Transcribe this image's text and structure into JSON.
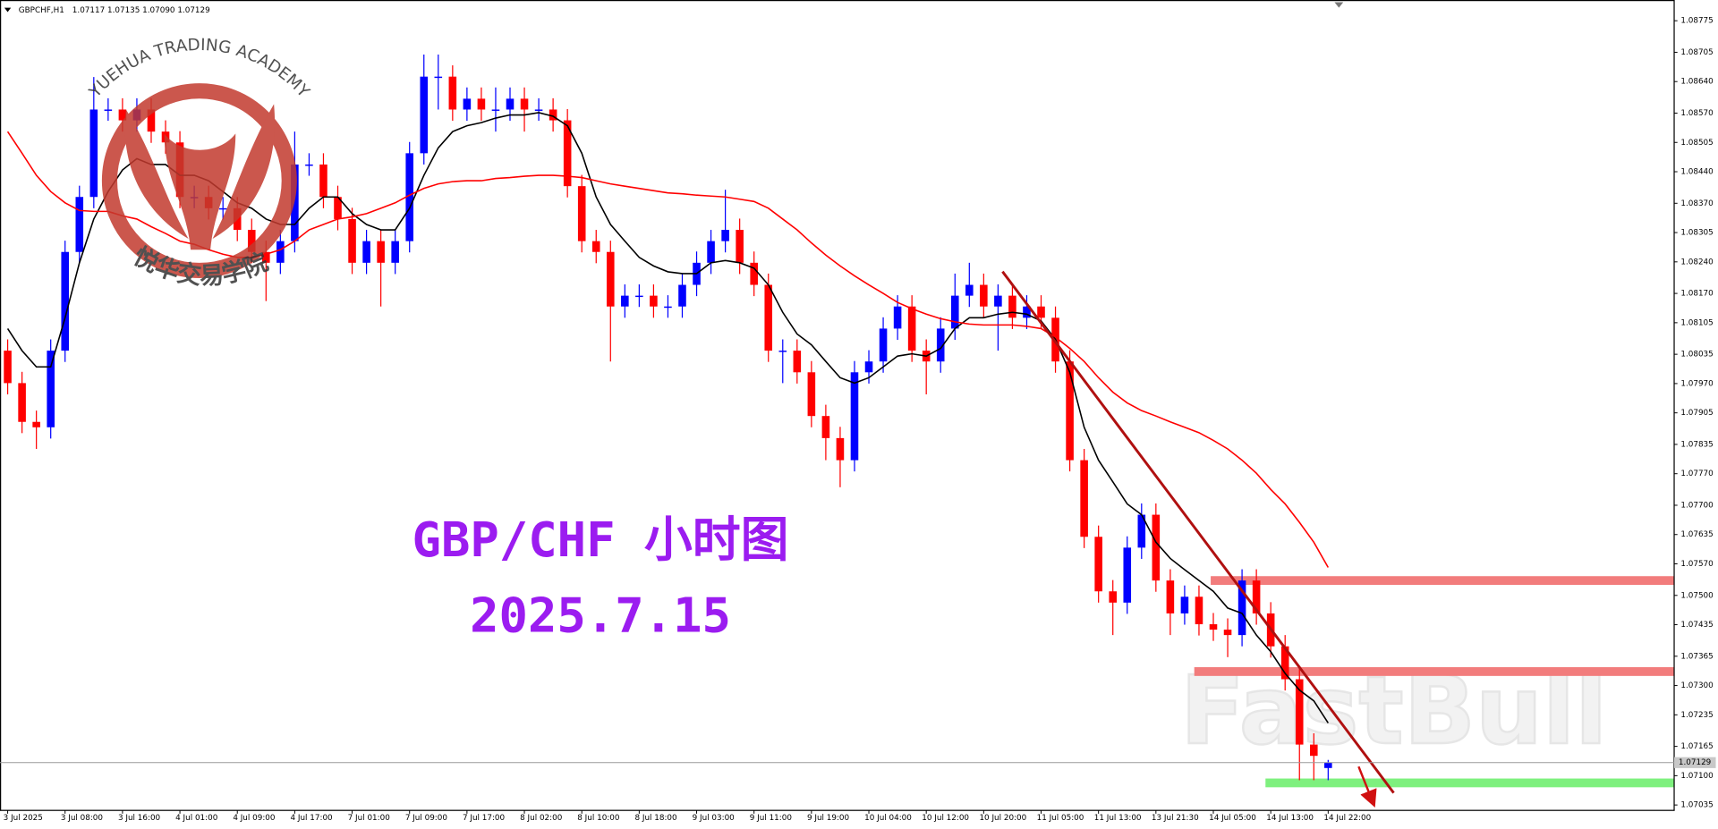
{
  "chart_data": {
    "type": "candlestick",
    "title": "GBPCHF,H1",
    "quote": "1.07117 1.07135 1.07090 1.07129",
    "annotations": [
      "GBP/CHF 小时图",
      "2025.7.15"
    ],
    "logo": {
      "top": "YUEHUA TRADING ACADEMY",
      "bottom": "悦华交易学院"
    },
    "watermark": "FastBull",
    "up_color": "#0000ff",
    "down_color": "#ff0000",
    "ylim": [
      1.07023,
      1.08821
    ],
    "yticks": [
      1.08775,
      1.08705,
      {
        "value": 1.0864,
        "label": "1.08640"
      },
      {
        "value": 1.0857,
        "label": "1.08570"
      },
      1.08505,
      {
        "value": 1.0844,
        "label": "1.08440"
      },
      {
        "value": 1.0837,
        "label": "1.08370"
      },
      1.08305,
      {
        "value": 1.0824,
        "label": "1.08240"
      },
      {
        "value": 1.0817,
        "label": "1.08170"
      },
      1.08105,
      1.08035,
      {
        "value": 1.0797,
        "label": "1.07970"
      },
      1.07905,
      1.07835,
      {
        "value": 1.0777,
        "label": "1.07770"
      },
      {
        "value": 1.077,
        "label": "1.07700"
      },
      1.07635,
      {
        "value": 1.0757,
        "label": "1.07570"
      },
      {
        "value": 1.075,
        "label": "1.07500"
      },
      1.07435,
      1.07365,
      {
        "value": 1.073,
        "label": "1.07300"
      },
      1.07235,
      1.07165,
      {
        "value": 1.071,
        "label": "1.07100"
      },
      1.07035
    ],
    "categories": [
      "3 Jul 2025",
      null,
      null,
      null,
      "3 Jul 08:00",
      null,
      null,
      null,
      "3 Jul 16:00",
      null,
      null,
      null,
      "4 Jul 01:00",
      null,
      null,
      null,
      "4 Jul 09:00",
      null,
      null,
      null,
      "4 Jul 17:00",
      null,
      null,
      null,
      "7 Jul 01:00",
      null,
      null,
      null,
      "7 Jul 09:00",
      null,
      null,
      null,
      "7 Jul 17:00",
      null,
      null,
      null,
      "8 Jul 02:00",
      null,
      null,
      null,
      "8 Jul 10:00",
      null,
      null,
      null,
      "8 Jul 18:00",
      null,
      null,
      null,
      "9 Jul 03:00",
      null,
      null,
      null,
      "9 Jul 11:00",
      null,
      null,
      null,
      "9 Jul 19:00",
      null,
      null,
      null,
      "10 Jul 04:00",
      null,
      null,
      null,
      "10 Jul 12:00",
      null,
      null,
      null,
      "10 Jul 20:00",
      null,
      null,
      null,
      "11 Jul 05:00",
      null,
      null,
      null,
      "11 Jul 13:00",
      null,
      null,
      null,
      "13 Jul 21:30",
      null,
      null,
      null,
      "14 Jul 05:00",
      null,
      null,
      null,
      "14 Jul 13:00",
      null,
      null,
      null,
      "14 Jul 22:00"
    ],
    "open": [
      1.08043,
      1.07971,
      1.07885,
      1.07873,
      1.08043,
      1.08262,
      1.08384,
      1.08578,
      1.08578,
      1.08554,
      1.08578,
      1.08529,
      1.08505,
      1.08384,
      1.08384,
      1.08359,
      1.08359,
      1.08311,
      1.08262,
      1.08238,
      1.08286,
      1.08456,
      1.08456,
      1.08384,
      1.08335,
      1.08238,
      1.08286,
      1.08238,
      1.08286,
      1.08481,
      1.08651,
      1.08651,
      1.08578,
      1.08602,
      1.08578,
      1.08578,
      1.08602,
      1.08578,
      1.08578,
      1.08554,
      1.08408,
      1.08286,
      1.08262,
      1.08141,
      1.08165,
      1.08165,
      1.08141,
      1.08141,
      1.08189,
      1.08238,
      1.08286,
      1.08311,
      1.08238,
      1.08189,
      1.08043,
      1.08043,
      1.07995,
      1.07898,
      1.07849,
      1.078,
      1.07995,
      1.08019,
      1.08092,
      1.08141,
      1.08043,
      1.08019,
      1.08092,
      1.08165,
      1.08189,
      1.08141,
      1.08165,
      1.08116,
      1.08141,
      1.08116,
      1.08019,
      1.078,
      1.0763,
      1.07509,
      1.07484,
      1.07606,
      1.07679,
      1.07533,
      1.0746,
      1.07497,
      1.07436,
      1.07424,
      1.07412,
      1.07533,
      1.0746,
      1.07387,
      1.07314,
      1.07169,
      1.07117
    ],
    "high": [
      1.08068,
      1.07996,
      1.0791,
      1.08068,
      1.08287,
      1.08409,
      1.0865,
      1.08603,
      1.08603,
      1.08603,
      1.08603,
      1.08554,
      1.0853,
      1.08409,
      1.08409,
      1.08384,
      1.08384,
      1.08336,
      1.08287,
      1.08311,
      1.08529,
      1.08481,
      1.08481,
      1.08409,
      1.0836,
      1.08311,
      1.08311,
      1.08311,
      1.08506,
      1.087,
      1.087,
      1.08676,
      1.08627,
      1.08627,
      1.08627,
      1.08627,
      1.08627,
      1.08603,
      1.08603,
      1.08579,
      1.08433,
      1.08311,
      1.08287,
      1.0819,
      1.0819,
      1.0819,
      1.08166,
      1.08214,
      1.08263,
      1.08311,
      1.084,
      1.08336,
      1.08263,
      1.08214,
      1.08068,
      1.08068,
      1.0802,
      1.07923,
      1.07874,
      1.0802,
      1.08044,
      1.08117,
      1.08166,
      1.08166,
      1.08068,
      1.08117,
      1.08214,
      1.08238,
      1.08214,
      1.0819,
      1.0819,
      1.08166,
      1.08166,
      1.08141,
      1.08044,
      1.07825,
      1.07655,
      1.07534,
      1.07631,
      1.07704,
      1.07704,
      1.07558,
      1.07522,
      1.07522,
      1.07461,
      1.07449,
      1.07558,
      1.07558,
      1.07485,
      1.07412,
      1.07339,
      1.07194,
      1.07135
    ],
    "low": [
      1.07946,
      1.0786,
      1.07825,
      1.07848,
      1.08018,
      1.08237,
      1.08359,
      1.08553,
      1.08529,
      1.08529,
      1.08504,
      1.0848,
      1.08359,
      1.08359,
      1.08334,
      1.08334,
      1.08286,
      1.08237,
      1.08153,
      1.08213,
      1.08261,
      1.08431,
      1.08359,
      1.0831,
      1.08213,
      1.08213,
      1.08141,
      1.08213,
      1.08261,
      1.08456,
      1.08578,
      1.08553,
      1.08553,
      1.08553,
      1.08529,
      1.08553,
      1.08529,
      1.08553,
      1.08529,
      1.08383,
      1.08261,
      1.08237,
      1.08019,
      1.08116,
      1.0814,
      1.08116,
      1.08116,
      1.08116,
      1.08164,
      1.08213,
      1.08261,
      1.08213,
      1.08164,
      1.08018,
      1.07971,
      1.0797,
      1.07873,
      1.078,
      1.0774,
      1.07775,
      1.0797,
      1.07994,
      1.08067,
      1.08018,
      1.07946,
      1.07994,
      1.08067,
      1.0814,
      1.08116,
      1.08043,
      1.08091,
      1.08091,
      1.08091,
      1.07994,
      1.07775,
      1.07605,
      1.07484,
      1.07412,
      1.07459,
      1.07581,
      1.07508,
      1.07412,
      1.07435,
      1.07411,
      1.07399,
      1.07363,
      1.07387,
      1.07435,
      1.07362,
      1.07289,
      1.0709,
      1.0709,
      1.0709
    ],
    "close": [
      1.07971,
      1.07885,
      1.07873,
      1.08043,
      1.08262,
      1.08384,
      1.08578,
      1.08578,
      1.08554,
      1.08578,
      1.08529,
      1.08505,
      1.08384,
      1.08384,
      1.08359,
      1.08359,
      1.08311,
      1.08262,
      1.08238,
      1.08286,
      1.08456,
      1.08456,
      1.08384,
      1.08335,
      1.08238,
      1.08286,
      1.08238,
      1.08286,
      1.08481,
      1.08651,
      1.08651,
      1.08578,
      1.08602,
      1.08578,
      1.08578,
      1.08602,
      1.08578,
      1.08578,
      1.08554,
      1.08408,
      1.08286,
      1.08262,
      1.08141,
      1.08165,
      1.08165,
      1.08141,
      1.08141,
      1.08189,
      1.08238,
      1.08286,
      1.08311,
      1.08238,
      1.08189,
      1.08043,
      1.08043,
      1.07995,
      1.07898,
      1.07849,
      1.078,
      1.07995,
      1.08019,
      1.08092,
      1.08141,
      1.08043,
      1.08019,
      1.08092,
      1.08165,
      1.08189,
      1.08141,
      1.08165,
      1.08116,
      1.08141,
      1.08116,
      1.08019,
      1.078,
      1.0763,
      1.07509,
      1.07484,
      1.07606,
      1.07679,
      1.07533,
      1.0746,
      1.07497,
      1.07436,
      1.07424,
      1.07412,
      1.07533,
      1.0746,
      1.07387,
      1.07314,
      1.07169,
      1.07144,
      1.07129
    ],
    "lines": [
      {
        "color": "#000000",
        "values": [
          1.08092,
          1.08043,
          1.08007,
          1.08007,
          1.08116,
          1.08238,
          1.08335,
          1.08396,
          1.08444,
          1.08469,
          1.08456,
          1.08456,
          1.08432,
          1.08432,
          1.0842,
          1.08396,
          1.08371,
          1.08359,
          1.08335,
          1.08323,
          1.08323,
          1.08359,
          1.08384,
          1.08384,
          1.08347,
          1.08323,
          1.08311,
          1.08311,
          1.08359,
          1.08432,
          1.08493,
          1.08529,
          1.08542,
          1.08549,
          1.08559,
          1.08566,
          1.08566,
          1.08571,
          1.08563,
          1.08542,
          1.08481,
          1.08384,
          1.08323,
          1.08286,
          1.0825,
          1.08231,
          1.08218,
          1.08214,
          1.08214,
          1.08238,
          1.08243,
          1.08238,
          1.08226,
          1.08189,
          1.08128,
          1.0808,
          1.08056,
          1.08019,
          1.07983,
          1.07971,
          1.07983,
          1.08007,
          1.08031,
          1.08036,
          1.08031,
          1.08048,
          1.08092,
          1.08116,
          1.08116,
          1.08124,
          1.08128,
          1.08124,
          1.08109,
          1.08068,
          1.07995,
          1.07873,
          1.078,
          1.07752,
          1.07703,
          1.07679,
          1.07618,
          1.07582,
          1.07557,
          1.07533,
          1.07509,
          1.07472,
          1.0746,
          1.07412,
          1.07375,
          1.07327,
          1.0729,
          1.07266,
          1.07217
        ]
      },
      {
        "color": "#ff0000",
        "values": [
          1.08529,
          1.08481,
          1.08432,
          1.08396,
          1.08371,
          1.08354,
          1.08352,
          1.08352,
          1.08342,
          1.08335,
          1.08318,
          1.08303,
          1.08286,
          1.08279,
          1.08267,
          1.08257,
          1.0825,
          1.0825,
          1.08257,
          1.08267,
          1.08286,
          1.08311,
          1.08323,
          1.08335,
          1.0834,
          1.08347,
          1.08359,
          1.08371,
          1.08388,
          1.08403,
          1.08413,
          1.08418,
          1.0842,
          1.0842,
          1.08425,
          1.08427,
          1.0843,
          1.08432,
          1.08432,
          1.0843,
          1.08427,
          1.0842,
          1.08413,
          1.08408,
          1.08403,
          1.08398,
          1.08393,
          1.08391,
          1.08388,
          1.08386,
          1.08384,
          1.08379,
          1.08374,
          1.08359,
          1.08335,
          1.08311,
          1.08282,
          1.08255,
          1.08231,
          1.08209,
          1.08189,
          1.0817,
          1.0815,
          1.08136,
          1.08124,
          1.08114,
          1.08107,
          1.08102,
          1.081,
          1.081,
          1.081,
          1.08097,
          1.08092,
          1.08073,
          1.08048,
          1.08019,
          1.07983,
          1.07951,
          1.07927,
          1.0791,
          1.07898,
          1.07885,
          1.07873,
          1.07861,
          1.07844,
          1.07825,
          1.078,
          1.07771,
          1.07735,
          1.07703,
          1.07662,
          1.07618,
          1.07562
        ]
      }
    ],
    "levels": [
      {
        "value": 1.07533,
        "color": "#f27c7c"
      },
      {
        "value": 1.07331,
        "color": "#f27c7c"
      },
      {
        "value": 1.07084,
        "color": "#7ef07e"
      }
    ]
  }
}
